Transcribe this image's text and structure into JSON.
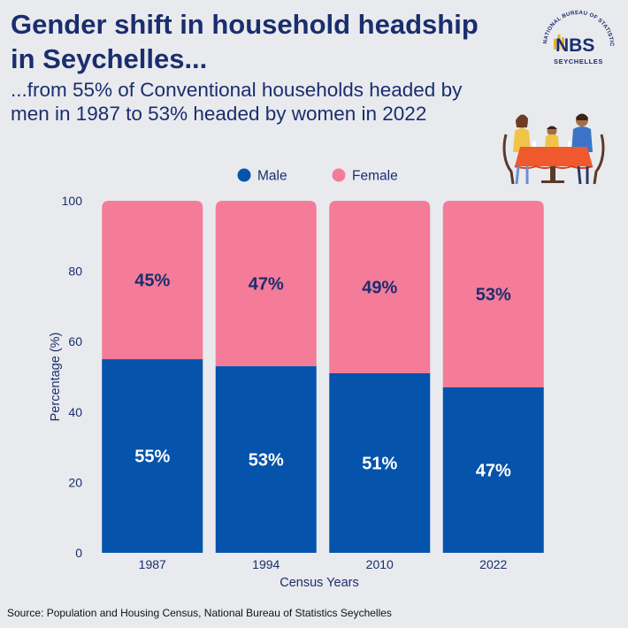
{
  "header": {
    "title_line1": "Gender shift in household headship",
    "title_line2": "in Seychelles...",
    "subtitle_line1": "...from 55% of Conventional households headed by",
    "subtitle_line2": "men in 1987 to 53% headed by women in 2022"
  },
  "logo": {
    "ring_text": "NATIONAL BUREAU OF STATISTICS",
    "mark": "NBS",
    "bottom_text": "SEYCHELLES"
  },
  "source": "Source: Population and Housing Census, National Bureau of Statistics Seychelles",
  "colors": {
    "male": "#0553ab",
    "female": "#f47c99",
    "text_dark": "#1a2e6e",
    "female_label": "#1a2e6e",
    "male_label": "#ffffff"
  },
  "chart_data": {
    "type": "bar",
    "stacked": true,
    "categories": [
      "1987",
      "1994",
      "2010",
      "2022"
    ],
    "series": [
      {
        "name": "Male",
        "values": [
          55,
          53,
          51,
          47
        ],
        "labels": [
          "55%",
          "53%",
          "51%",
          "47%"
        ]
      },
      {
        "name": "Female",
        "values": [
          45,
          47,
          49,
          53
        ],
        "labels": [
          "45%",
          "47%",
          "49%",
          "53%"
        ]
      }
    ],
    "xlabel": "Census Years",
    "ylabel": "Percentage (%)",
    "ylim": [
      0,
      100
    ],
    "yticks": [
      "0",
      "20",
      "40",
      "60",
      "80",
      "100"
    ],
    "legend": "top-center",
    "grid": false
  }
}
